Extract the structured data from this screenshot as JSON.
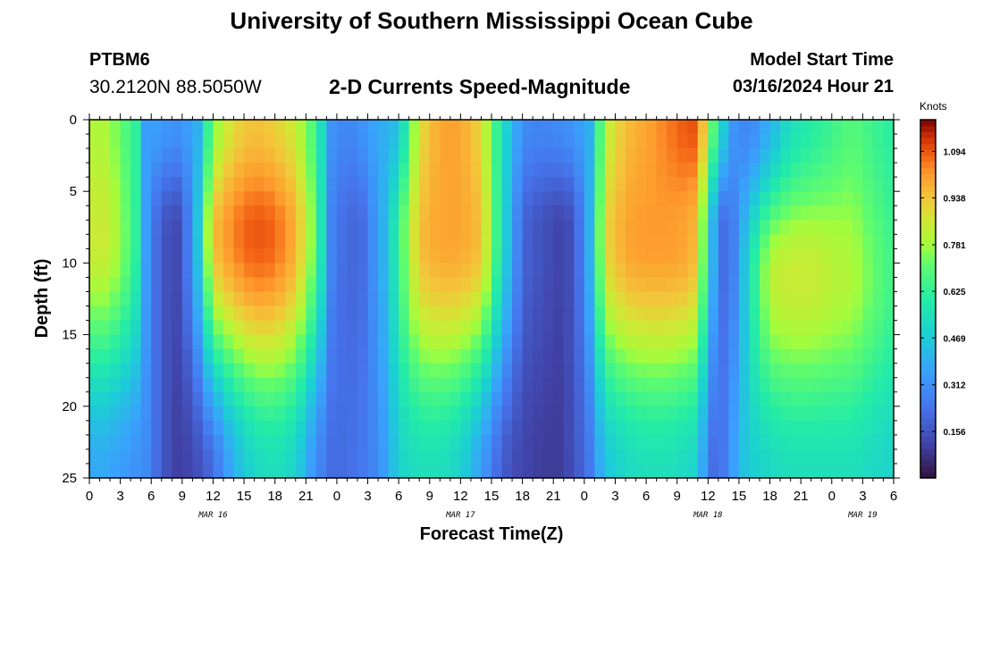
{
  "header": {
    "title": "University of Southern Mississippi Ocean Cube",
    "station_id": "PTBM6",
    "station_coords": "30.2120N  88.5050W",
    "plot_title": "2-D Currents Speed-Magnitude",
    "model_start_label": "Model Start Time",
    "model_start_value": "03/16/2024 Hour 21"
  },
  "footer": {
    "title": "University of Southern Mississippi Ocean Cube"
  },
  "chart_data": {
    "type": "heatmap",
    "title": "2-D Currents Speed-Magnitude",
    "xlabel": "Forecast Time(Z)",
    "ylabel": "Depth (ft)",
    "x_unit": "hours since 2024-03-16 00Z",
    "xlim": [
      0,
      78
    ],
    "ylim": [
      0,
      25
    ],
    "x_tick_values": [
      0,
      3,
      6,
      9,
      12,
      15,
      18,
      21,
      24,
      27,
      30,
      33,
      36,
      39,
      42,
      45,
      48,
      51,
      54,
      57,
      60,
      63,
      66,
      69,
      72,
      75,
      78
    ],
    "x_tick_labels": [
      "0",
      "3",
      "6",
      "9",
      "12",
      "15",
      "18",
      "21",
      "0",
      "3",
      "6",
      "9",
      "12",
      "15",
      "18",
      "21",
      "0",
      "3",
      "6",
      "9",
      "12",
      "15",
      "18",
      "21",
      "0",
      "3",
      "6"
    ],
    "y_tick_values": [
      0,
      5,
      10,
      15,
      20,
      25
    ],
    "y_tick_labels": [
      "0",
      "5",
      "10",
      "15",
      "20",
      "25"
    ],
    "date_labels": [
      {
        "x": 12,
        "text": "MAR 16"
      },
      {
        "x": 36,
        "text": "MAR 17"
      },
      {
        "x": 60,
        "text": "MAR 18"
      },
      {
        "x": 75,
        "text": "MAR 19"
      }
    ],
    "colorbar": {
      "title": "Knots",
      "range": [
        0,
        1.2
      ],
      "tick_values": [
        0.156,
        0.312,
        0.469,
        0.625,
        0.781,
        0.938,
        1.094
      ],
      "tick_labels": [
        "0.156",
        "0.312",
        "0.469",
        "0.625",
        "0.781",
        "0.938",
        "1.094"
      ]
    },
    "grid": false,
    "time_profile_hours": [
      0,
      1.5,
      3,
      4.5,
      5.5,
      6.5,
      8,
      9,
      10.5,
      12,
      14,
      16,
      18,
      20,
      22,
      23.5,
      25,
      26.5,
      28,
      29,
      30,
      32,
      34,
      36,
      38,
      40,
      42,
      44,
      45.5,
      47,
      48.5,
      50,
      52,
      54,
      56,
      58,
      59,
      60,
      61,
      62,
      63,
      64,
      66,
      68,
      70,
      72,
      74,
      76,
      78
    ],
    "surface_speed_knots": [
      0.8,
      0.8,
      0.72,
      0.62,
      0.35,
      0.35,
      0.32,
      0.32,
      0.4,
      0.75,
      0.9,
      0.95,
      0.92,
      0.85,
      0.65,
      0.32,
      0.28,
      0.32,
      0.38,
      0.4,
      0.45,
      0.88,
      1.0,
      1.0,
      0.9,
      0.55,
      0.3,
      0.28,
      0.3,
      0.32,
      0.4,
      0.82,
      0.95,
      1.0,
      1.05,
      1.1,
      1.1,
      0.8,
      0.6,
      0.35,
      0.3,
      0.28,
      0.4,
      0.55,
      0.6,
      0.65,
      0.7,
      0.65,
      0.6
    ],
    "core_speed_knots": [
      0.85,
      0.85,
      0.78,
      0.62,
      0.35,
      0.22,
      0.12,
      0.15,
      0.45,
      0.95,
      1.05,
      1.1,
      1.08,
      0.98,
      0.7,
      0.28,
      0.2,
      0.22,
      0.35,
      0.45,
      0.65,
      0.95,
      1.0,
      1.0,
      0.95,
      0.55,
      0.2,
      0.15,
      0.12,
      0.15,
      0.4,
      0.9,
      1.0,
      1.02,
      1.02,
      1.0,
      0.95,
      0.55,
      0.25,
      0.2,
      0.35,
      0.55,
      0.82,
      0.85,
      0.85,
      0.82,
      0.8,
      0.72,
      0.65
    ],
    "bottom_speed_knots": [
      0.38,
      0.38,
      0.35,
      0.32,
      0.3,
      0.22,
      0.12,
      0.1,
      0.15,
      0.22,
      0.4,
      0.52,
      0.55,
      0.5,
      0.3,
      0.22,
      0.22,
      0.25,
      0.3,
      0.38,
      0.5,
      0.55,
      0.55,
      0.5,
      0.35,
      0.18,
      0.12,
      0.1,
      0.1,
      0.15,
      0.25,
      0.45,
      0.52,
      0.55,
      0.55,
      0.52,
      0.5,
      0.25,
      0.2,
      0.3,
      0.42,
      0.48,
      0.52,
      0.55,
      0.55,
      0.55,
      0.55,
      0.52,
      0.5
    ]
  }
}
